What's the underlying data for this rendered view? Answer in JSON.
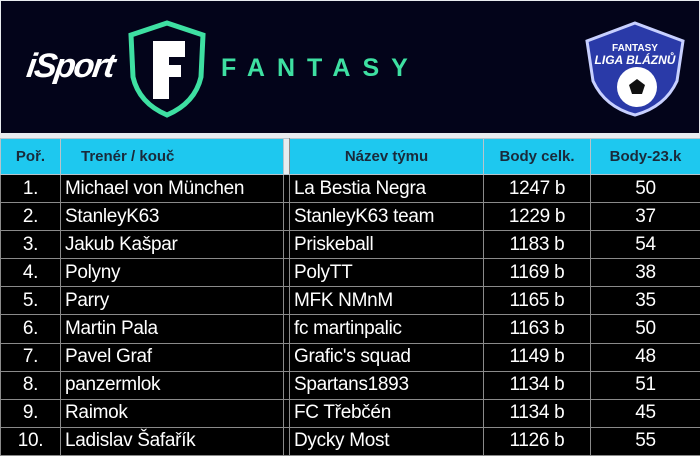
{
  "banner": {
    "isport_logo": "iSport",
    "fantasy_label": "FANTASY",
    "badge_top": "FANTASY",
    "badge_bottom": "LIGA BLÁZNŮ"
  },
  "colors": {
    "banner_bg": "#03041a",
    "header_bg": "#1ec8ef",
    "accent_green": "#3ee0a2",
    "row_bg": "#000000"
  },
  "table": {
    "headers": [
      "Poř.",
      "Trenér / kouč",
      "Název týmu",
      "Body celk.",
      "Body-23.k"
    ],
    "rows": [
      [
        "1.",
        "Michael von München",
        "La Bestia Negra",
        "1247 b",
        "50"
      ],
      [
        "2.",
        "StanleyK63",
        "StanleyK63 team",
        "1229 b",
        "37"
      ],
      [
        "3.",
        "Jakub Kašpar",
        "Priskeball",
        "1183 b",
        "54"
      ],
      [
        "4.",
        "Polyny",
        "PolyTT",
        "1169 b",
        "38"
      ],
      [
        "5.",
        "Parry",
        "MFK NMnM",
        "1165 b",
        "35"
      ],
      [
        "6.",
        "Martin Pala",
        "fc martinpalic",
        "1163 b",
        "50"
      ],
      [
        "7.",
        "Pavel Graf",
        "Grafic's squad",
        "1149 b",
        "48"
      ],
      [
        "8.",
        "panzermlok",
        "Spartans1893",
        "1134 b",
        "51"
      ],
      [
        "9.",
        "Raimok",
        "FC Třebčén",
        "1134 b",
        "45"
      ],
      [
        "10.",
        "Ladislav Šafařík",
        "Dycky Most",
        "1126 b",
        "55"
      ]
    ]
  }
}
